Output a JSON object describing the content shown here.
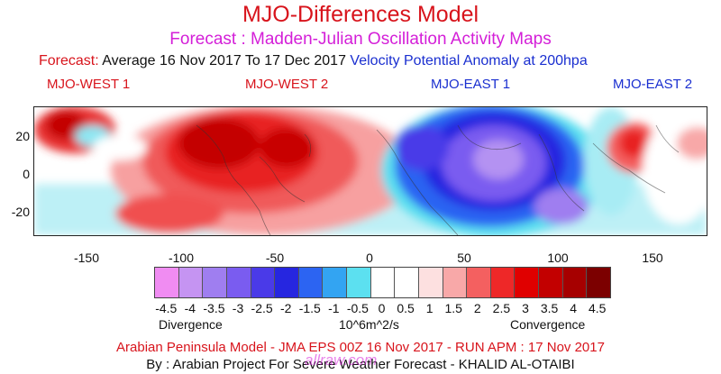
{
  "title": "MJO-Differences Model",
  "subtitle": "Forecast : Madden-Julian Oscillation Activity Maps",
  "forecast_line": {
    "prefix": "Forecast:",
    "period": "Average 16 Nov 2017 To 17 Dec 2017",
    "field": "Velocity Potential Anomaly at 200hpa"
  },
  "regions": [
    "MJO-WEST 1",
    "MJO-WEST 2",
    "MJO-EAST 1",
    "MJO-EAST 2"
  ],
  "map": {
    "y_ticks": [
      "20",
      "0",
      "-20"
    ],
    "x_ticks": [
      "-150",
      "-100",
      "-50",
      "0",
      "50",
      "100",
      "150"
    ],
    "lon_range": [
      -180,
      180
    ],
    "lat_range": [
      -35,
      35
    ]
  },
  "colorbar": {
    "labels": [
      "-4.5",
      "-4",
      "-3.5",
      "-3",
      "-2.5",
      "-2",
      "-1.5",
      "-1",
      "-0.5",
      "0",
      "0.5",
      "1",
      "1.5",
      "2",
      "2.5",
      "3",
      "3.5",
      "4",
      "4.5"
    ],
    "colors": [
      "#f08cf2",
      "#c594f2",
      "#9f7ef0",
      "#7a5cf0",
      "#4a3ae8",
      "#2626e0",
      "#2c64f2",
      "#33a4f2",
      "#5ce0f0",
      "#ffffff",
      "#ffffff",
      "#fde0e0",
      "#f8a8a8",
      "#f46060",
      "#ee2828",
      "#e00000",
      "#c20000",
      "#a60000",
      "#7c0000"
    ],
    "unit": "10^6m^2/s",
    "left_label": "Divergence",
    "right_label": "Convergence"
  },
  "footer": {
    "model_line": "Arabian Peninsula Model - JMA EPS 00Z 16 Nov 2017 - RUN APM : 17 Nov 2017",
    "credit_line": "By : Arabian Project For Severe Weather Forecast  - KHALID AL-OTAIBI",
    "watermark": "allraw.com"
  }
}
